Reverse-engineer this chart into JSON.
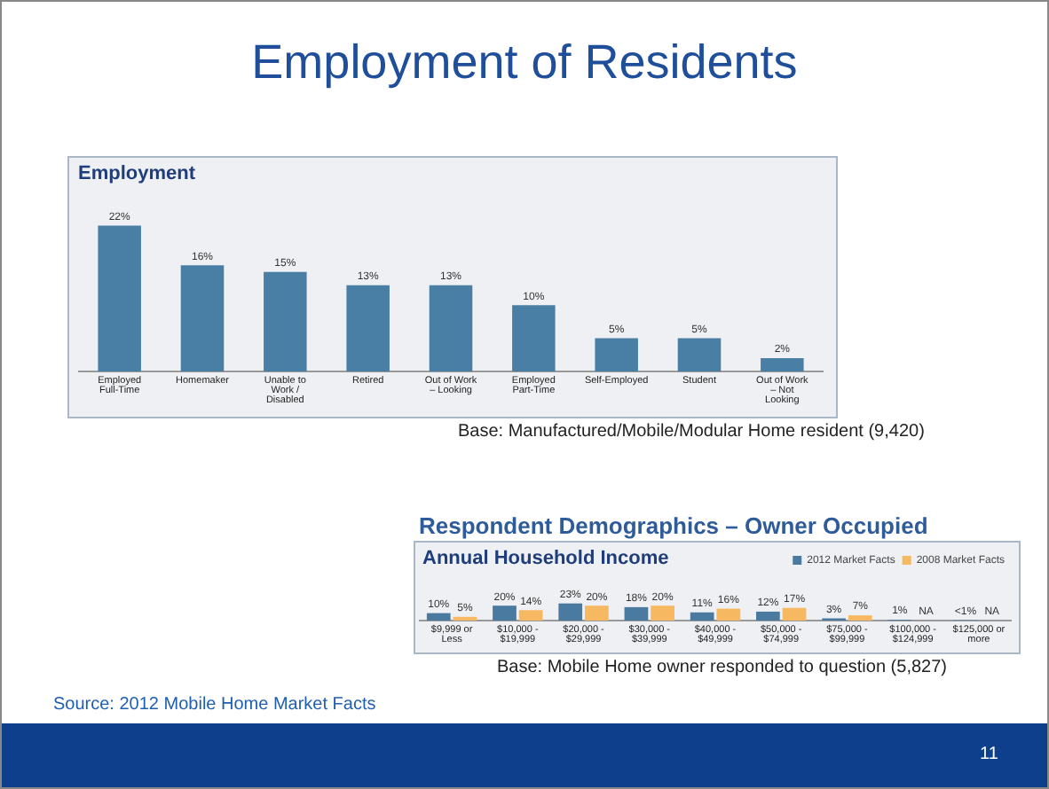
{
  "chart_data": [
    {
      "type": "bar",
      "title": "Employment of Residents",
      "subtitle": "Employment",
      "categories": [
        "Employed Full-Time",
        "Homemaker",
        "Unable to Work / Disabled",
        "Retired",
        "Out of Work – Looking",
        "Employed Part-Time",
        "Self-Employed",
        "Student",
        "Out of Work – Not Looking"
      ],
      "values": [
        22,
        16,
        15,
        13,
        13,
        10,
        5,
        5,
        2
      ],
      "color": "#4a7fa5",
      "value_labels": [
        "22%",
        "16%",
        "15%",
        "13%",
        "13%",
        "10%",
        "5%",
        "5%",
        "2%"
      ],
      "annotations": [
        "Base: Manufactured/Mobile/Modular Home resident (9,420)"
      ],
      "legend": false,
      "grid": false
    },
    {
      "type": "bar",
      "title": "Respondent Demographics – Owner Occupied",
      "subtitle": "Annual Household Income",
      "categories": [
        "$9,999 or Less",
        "$10,000 - $19,999",
        "$20,000 - $29,999",
        "$30,000 - $39,999",
        "$40,000 - $49,999",
        "$50,000 - $74,999",
        "$75,000 - $99,999",
        "$100,000 - $124,999",
        "$125,000 or more"
      ],
      "series": [
        {
          "name": "2012 Market Facts",
          "color": "#4a7aa0",
          "values": [
            10,
            20,
            23,
            18,
            11,
            12,
            3,
            1,
            0.5
          ],
          "value_labels": [
            "10%",
            "20%",
            "23%",
            "18%",
            "11%",
            "12%",
            "3%",
            "1%",
            "<1%"
          ]
        },
        {
          "name": "2008 Market Facts",
          "color": "#f7b862",
          "values": [
            5,
            14,
            20,
            20,
            16,
            17,
            7,
            null,
            null
          ],
          "value_labels": [
            "5%",
            "14%",
            "20%",
            "20%",
            "16%",
            "17%",
            "7%",
            "NA",
            "NA"
          ]
        }
      ],
      "annotations": [
        "Base: Mobile Home owner responded to question (5,827)",
        "Source: 2012 Mobile Home Market Facts",
        "11"
      ],
      "legend": "top right",
      "grid": false
    }
  ]
}
